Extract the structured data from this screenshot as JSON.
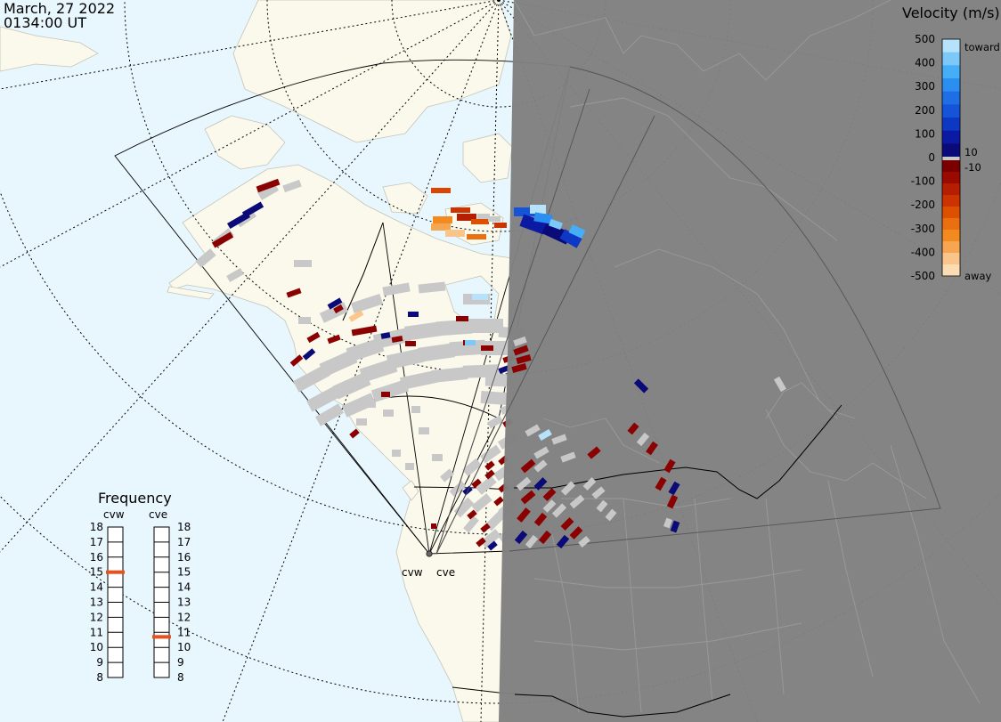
{
  "header": {
    "date": "March, 27 2022",
    "time": "0134:00 UT"
  },
  "legend": {
    "title": "Velocity (m/s)",
    "ticks": [
      "500",
      "400",
      "300",
      "200",
      "100",
      "0",
      "-100",
      "-200",
      "-300",
      "-400",
      "-500"
    ],
    "label_10": "10",
    "label_m10": "-10",
    "label_toward": "toward",
    "label_away": "away",
    "colors": {
      "toward": [
        "#0a0a78",
        "#0b1aa3",
        "#0d38c4",
        "#1553d8",
        "#1e6fe6",
        "#2a8ff0",
        "#45aef6",
        "#7cc8f8",
        "#b6e2fb"
      ],
      "away": [
        "#7a0000",
        "#9a0a00",
        "#b51e00",
        "#cc3300",
        "#dd5000",
        "#ea6f10",
        "#f28a20",
        "#f6a650",
        "#fac58a",
        "#fcdcb2"
      ],
      "zero": "#c8c8c8"
    }
  },
  "frequency": {
    "title": "Frequency",
    "radar_west": "cvw",
    "radar_east": "cve",
    "ticks": [
      "18",
      "17",
      "16",
      "15",
      "14",
      "13",
      "12",
      "11",
      "10",
      "9",
      "8"
    ],
    "cvw_mhz": 15,
    "cve_mhz": 10.7,
    "marker_color": "#e8501e"
  },
  "sites": {
    "west": "cvw",
    "east": "cve"
  },
  "colors": {
    "ocean": "#e8f6fd",
    "land": "#fbf9eb",
    "night": "#808080",
    "gray_scatter": "#c8c8c8"
  }
}
